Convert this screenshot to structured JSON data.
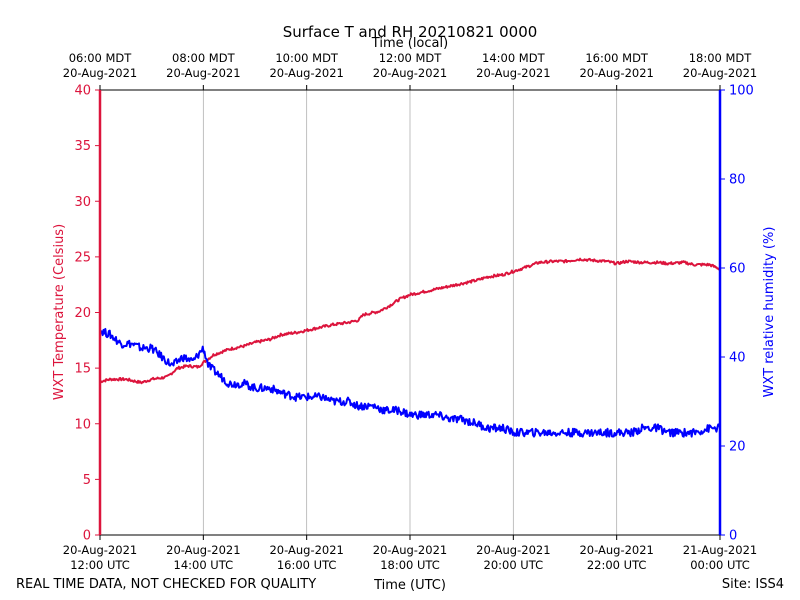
{
  "chart_data": {
    "type": "line",
    "title": "Surface T and RH 20210821 0000",
    "top_axis_label": "Time (local)",
    "xlabel": "Time (UTC)",
    "ylabel_left": "WXT Temperature (Celsius)",
    "ylabel_right": "WXT relative humidity (%)",
    "footer_left": "REAL TIME DATA, NOT CHECKED FOR QUALITY",
    "footer_right": "Site: ISS4",
    "x_range_hours_utc": [
      12,
      24
    ],
    "ylim_left": [
      0,
      40
    ],
    "ylim_right": [
      0,
      100
    ],
    "left_ticks": [
      "0",
      "5",
      "10",
      "15",
      "20",
      "25",
      "30",
      "35",
      "40"
    ],
    "right_ticks": [
      "0",
      "20",
      "40",
      "60",
      "80",
      "100"
    ],
    "bottom_ticks": [
      {
        "date": "20-Aug-2021",
        "time": "12:00 UTC"
      },
      {
        "date": "20-Aug-2021",
        "time": "14:00 UTC"
      },
      {
        "date": "20-Aug-2021",
        "time": "16:00 UTC"
      },
      {
        "date": "20-Aug-2021",
        "time": "18:00 UTC"
      },
      {
        "date": "20-Aug-2021",
        "time": "20:00 UTC"
      },
      {
        "date": "20-Aug-2021",
        "time": "22:00 UTC"
      },
      {
        "date": "21-Aug-2021",
        "time": "00:00 UTC"
      }
    ],
    "top_ticks": [
      {
        "time": "06:00 MDT",
        "date": "20-Aug-2021"
      },
      {
        "time": "08:00 MDT",
        "date": "20-Aug-2021"
      },
      {
        "time": "10:00 MDT",
        "date": "20-Aug-2021"
      },
      {
        "time": "12:00 MDT",
        "date": "20-Aug-2021"
      },
      {
        "time": "14:00 MDT",
        "date": "20-Aug-2021"
      },
      {
        "time": "16:00 MDT",
        "date": "20-Aug-2021"
      },
      {
        "time": "18:00 MDT",
        "date": "20-Aug-2021"
      }
    ],
    "grid": "vertical",
    "series": [
      {
        "name": "WXT Temperature (Celsius)",
        "axis": "left",
        "color": "#dc143c",
        "x_hours": [
          12.0,
          12.2,
          12.5,
          12.8,
          13.0,
          13.3,
          13.5,
          13.7,
          13.9,
          14.0,
          14.2,
          14.5,
          14.8,
          15.0,
          15.3,
          15.5,
          15.8,
          16.0,
          16.3,
          16.5,
          16.8,
          17.0,
          17.1,
          17.4,
          17.6,
          17.8,
          18.0,
          18.2,
          18.5,
          18.8,
          19.0,
          19.3,
          19.5,
          19.8,
          20.0,
          20.2,
          20.5,
          20.8,
          21.0,
          21.3,
          21.5,
          21.8,
          22.0,
          22.2,
          22.5,
          22.8,
          23.0,
          23.3,
          23.5,
          23.8,
          24.0
        ],
        "values": [
          13.8,
          14.0,
          14.0,
          13.7,
          14.0,
          14.2,
          15.0,
          15.2,
          15.1,
          15.5,
          16.2,
          16.7,
          17.0,
          17.3,
          17.6,
          18.0,
          18.2,
          18.4,
          18.7,
          18.9,
          19.1,
          19.3,
          19.8,
          20.1,
          20.6,
          21.2,
          21.6,
          21.8,
          22.1,
          22.4,
          22.6,
          22.9,
          23.2,
          23.4,
          23.7,
          24.0,
          24.5,
          24.6,
          24.6,
          24.8,
          24.7,
          24.6,
          24.4,
          24.6,
          24.5,
          24.5,
          24.4,
          24.5,
          24.3,
          24.3,
          23.9
        ]
      },
      {
        "name": "WXT relative humidity (%)",
        "axis": "right",
        "color": "#0000ff",
        "x_hours": [
          12.0,
          12.2,
          12.4,
          12.6,
          12.8,
          13.0,
          13.2,
          13.4,
          13.6,
          13.8,
          14.0,
          14.1,
          14.3,
          14.5,
          14.8,
          15.0,
          15.3,
          15.5,
          15.8,
          16.0,
          16.3,
          16.5,
          16.8,
          17.0,
          17.3,
          17.5,
          17.8,
          18.0,
          18.3,
          18.5,
          18.8,
          19.0,
          19.3,
          19.5,
          19.8,
          20.0,
          20.3,
          20.5,
          20.8,
          21.0,
          21.3,
          21.5,
          21.8,
          22.0,
          22.3,
          22.5,
          22.8,
          23.0,
          23.3,
          23.5,
          23.8,
          24.0
        ],
        "values": [
          46,
          45,
          43,
          43,
          42,
          42,
          40,
          38,
          40,
          39,
          42,
          38,
          36,
          34,
          34,
          33,
          33,
          32,
          31,
          31,
          31,
          30,
          30,
          29,
          29,
          28,
          28,
          27,
          27,
          27,
          26,
          26,
          25,
          24,
          24,
          23,
          23,
          23,
          23,
          23,
          23,
          23,
          23,
          23,
          23,
          24,
          24,
          23,
          23,
          23,
          24,
          24
        ]
      }
    ]
  }
}
